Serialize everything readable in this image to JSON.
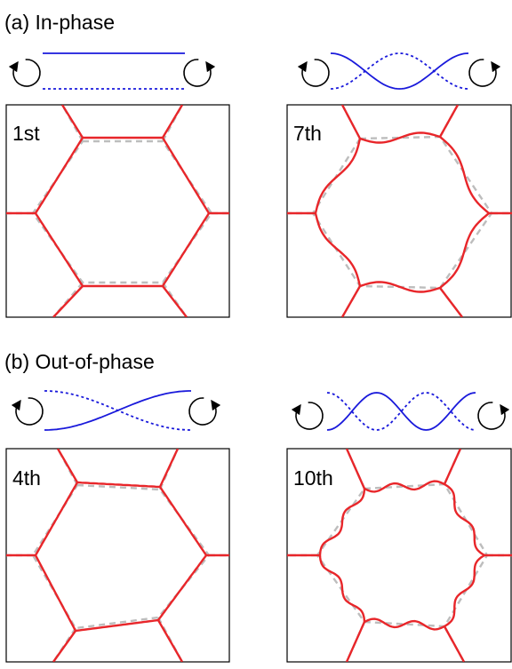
{
  "sections": [
    {
      "label": "(a) In-phase",
      "panels": [
        {
          "label": "1st"
        },
        {
          "label": "7th"
        }
      ]
    },
    {
      "label": "(b) Out-of-phase",
      "panels": [
        {
          "label": "4th"
        },
        {
          "label": "10th"
        }
      ]
    }
  ]
}
